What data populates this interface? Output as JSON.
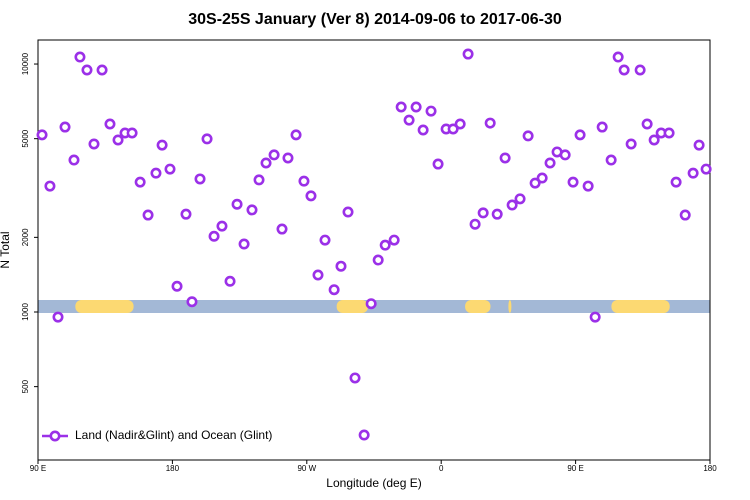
{
  "chart_data": {
    "type": "scatter",
    "title": "30S-25S January (Ver 8)   2014-09-06 to 2017-06-30",
    "x_label": "Longitude (deg E)",
    "y_label": "N Total",
    "log_y": true,
    "legend": "bottom-left",
    "xlim": [
      90,
      540
    ],
    "ylim": [
      253,
      12500
    ],
    "xticks": [
      {
        "value": 90,
        "label": "90 E"
      },
      {
        "value": 180,
        "label": "180"
      },
      {
        "value": 270,
        "label": "90 W"
      },
      {
        "value": 360,
        "label": "0"
      },
      {
        "value": 450,
        "label": "90 E"
      },
      {
        "value": 540,
        "label": "180"
      }
    ],
    "yticks": [
      500,
      1000,
      2000,
      5000,
      10000
    ],
    "land_ranges": [
      [
        115,
        154
      ],
      [
        290,
        311
      ],
      [
        376,
        393
      ],
      [
        405,
        407
      ],
      [
        474,
        513
      ]
    ],
    "land_color": "#fcd972",
    "ocean_color": "#a3b8d6",
    "series": [
      {
        "name": "Land (Nadir&Glint) and Ocean (Glint)",
        "color": "#9b30e8",
        "x": [
          92.7,
          98.0,
          103.4,
          108.1,
          114.1,
          118.1,
          122.8,
          127.5,
          132.9,
          138.2,
          143.6,
          148.3,
          153.0,
          158.4,
          163.7,
          169.0,
          173.1,
          178.4,
          183.1,
          189.1,
          193.1,
          198.5,
          203.2,
          207.9,
          213.2,
          218.6,
          223.3,
          228.0,
          233.3,
          238.0,
          242.7,
          248.1,
          253.4,
          257.4,
          262.8,
          268.1,
          272.8,
          277.5,
          282.2,
          288.3,
          292.9,
          297.6,
          302.3,
          308.4,
          313.1,
          317.8,
          322.5,
          328.5,
          333.2,
          338.5,
          343.2,
          347.9,
          353.2,
          357.9,
          363.3,
          368.0,
          372.7,
          378.0,
          382.7,
          388.1,
          392.8,
          397.5,
          402.8,
          407.5,
          412.8,
          418.2,
          422.9,
          427.6,
          432.9,
          437.6,
          443.0,
          448.3,
          453.0,
          458.4,
          463.1,
          467.8,
          473.8,
          478.5,
          482.5,
          487.2,
          493.2,
          497.9,
          502.6,
          507.3,
          512.6,
          517.3,
          523.4,
          528.7,
          532.7,
          537.4
        ],
        "values": [
          5180,
          3220,
          954,
          5570,
          4100,
          10670,
          9460,
          4760,
          9460,
          5730,
          4940,
          5270,
          5270,
          3340,
          2460,
          3630,
          4710,
          3770,
          1270,
          2480,
          1100,
          3440,
          4990,
          2020,
          2220,
          1330,
          2720,
          1880,
          2580,
          3410,
          3990,
          4300,
          2160,
          4180,
          5180,
          3370,
          2940,
          1410,
          1950,
          1230,
          1530,
          2530,
          542,
          319,
          1080,
          1620,
          1860,
          1950,
          6710,
          5940,
          6710,
          5420,
          6460,
          3950,
          5470,
          5470,
          5730,
          10970,
          2260,
          2510,
          5780,
          2480,
          4180,
          2700,
          2860,
          5130,
          3310,
          3470,
          3990,
          4420,
          4300,
          3340,
          5180,
          3220,
          954,
          5570,
          4100,
          10670,
          9460,
          4760,
          9460,
          5730,
          4940,
          5270,
          5270,
          3340,
          2460,
          3630,
          4710,
          3770
        ]
      }
    ]
  }
}
